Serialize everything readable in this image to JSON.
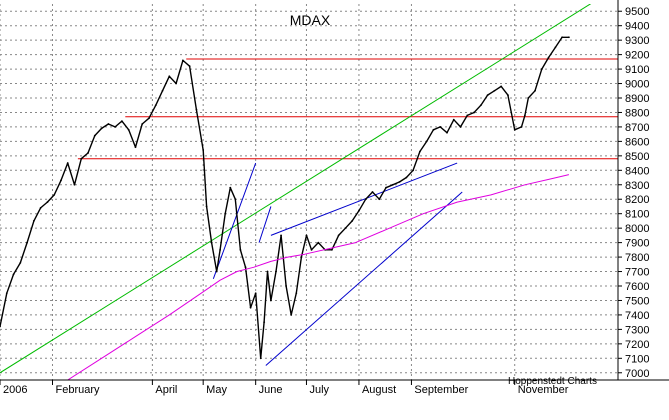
{
  "chart_data": {
    "type": "line",
    "title": "MDAX",
    "credit": "Hoppenstedt Charts",
    "x_tick_labels": [
      "2006",
      "February",
      "April",
      "May",
      "June",
      "July",
      "August",
      "September",
      "November"
    ],
    "x_tick_days": [
      0,
      31,
      90,
      120,
      151,
      181,
      212,
      243,
      304
    ],
    "x_range_days": [
      0,
      365
    ],
    "ylim": [
      6950,
      9550
    ],
    "yticks": [
      7000,
      7100,
      7200,
      7300,
      7400,
      7500,
      7600,
      7700,
      7800,
      7900,
      8000,
      8100,
      8200,
      8300,
      8400,
      8500,
      8600,
      8700,
      8800,
      8900,
      9000,
      9100,
      9200,
      9300,
      9400,
      9500
    ],
    "grid": true,
    "colors": {
      "price": "#000000",
      "support_resistance": "#e00000",
      "long_trend": "#00bb00",
      "moving_average": "#e000e0",
      "channel": "#0000cc",
      "grid": "#888888"
    },
    "series": [
      {
        "role": "price",
        "x_day": [
          0,
          4,
          8,
          12,
          16,
          20,
          24,
          28,
          32,
          36,
          40,
          44,
          48,
          52,
          56,
          60,
          64,
          68,
          72,
          76,
          80,
          84,
          88,
          92,
          96,
          100,
          104,
          108,
          112,
          116,
          120,
          122,
          125,
          128,
          130,
          133,
          136,
          139,
          142,
          145,
          148,
          151,
          154,
          156,
          158,
          160,
          163,
          166,
          169,
          172,
          175,
          178,
          181,
          184,
          188,
          192,
          196,
          200,
          204,
          208,
          212,
          216,
          220,
          224,
          228,
          232,
          236,
          240,
          244,
          248,
          252,
          256,
          260,
          264,
          268,
          272,
          276,
          280,
          284,
          288,
          292,
          296,
          300,
          304,
          308,
          310,
          312,
          316,
          320,
          324,
          328,
          332,
          336
        ],
        "values": [
          7320,
          7550,
          7680,
          7760,
          7900,
          8050,
          8140,
          8180,
          8230,
          8330,
          8450,
          8300,
          8480,
          8520,
          8640,
          8690,
          8720,
          8700,
          8740,
          8680,
          8560,
          8720,
          8760,
          8850,
          8950,
          9050,
          9000,
          9160,
          9120,
          8820,
          8540,
          8150,
          7900,
          7700,
          7850,
          8100,
          8280,
          8200,
          7850,
          7730,
          7450,
          7550,
          7100,
          7350,
          7700,
          7500,
          7700,
          7950,
          7600,
          7400,
          7550,
          7800,
          7950,
          7850,
          7900,
          7850,
          7850,
          7950,
          8000,
          8050,
          8120,
          8200,
          8250,
          8200,
          8280,
          8300,
          8320,
          8350,
          8400,
          8530,
          8600,
          8680,
          8700,
          8660,
          8750,
          8700,
          8780,
          8800,
          8850,
          8920,
          8950,
          8980,
          8920,
          8680,
          8700,
          8780,
          8900,
          8950,
          9100,
          9180,
          9250,
          9320,
          9320
        ]
      },
      {
        "role": "moving_average",
        "x_day": [
          20,
          40,
          60,
          80,
          100,
          120,
          130,
          140,
          150,
          160,
          170,
          180,
          195,
          210,
          230,
          250,
          270,
          290,
          310,
          325,
          336
        ],
        "values": [
          6800,
          6950,
          7100,
          7250,
          7400,
          7560,
          7640,
          7700,
          7730,
          7770,
          7800,
          7820,
          7860,
          7900,
          8000,
          8100,
          8180,
          8230,
          8300,
          8340,
          8370
        ]
      }
    ],
    "horizontal_levels": [
      {
        "value": 9170,
        "from_day": 110,
        "to_day": 365
      },
      {
        "value": 8770,
        "from_day": 74,
        "to_day": 365
      },
      {
        "value": 8480,
        "from_day": 46,
        "to_day": 365
      }
    ],
    "trend_lines": [
      {
        "role": "long_trend",
        "from": [
          0,
          7000
        ],
        "to": [
          350,
          9560
        ]
      },
      {
        "role": "channel",
        "from": [
          157,
          7050
        ],
        "to": [
          273,
          8250
        ]
      },
      {
        "role": "channel",
        "from": [
          160,
          7950
        ],
        "to": [
          270,
          8450
        ]
      },
      {
        "role": "channel",
        "from": [
          126,
          7650
        ],
        "to": [
          151,
          8450
        ]
      },
      {
        "role": "channel",
        "from": [
          153,
          7900
        ],
        "to": [
          160,
          8150
        ]
      }
    ]
  }
}
